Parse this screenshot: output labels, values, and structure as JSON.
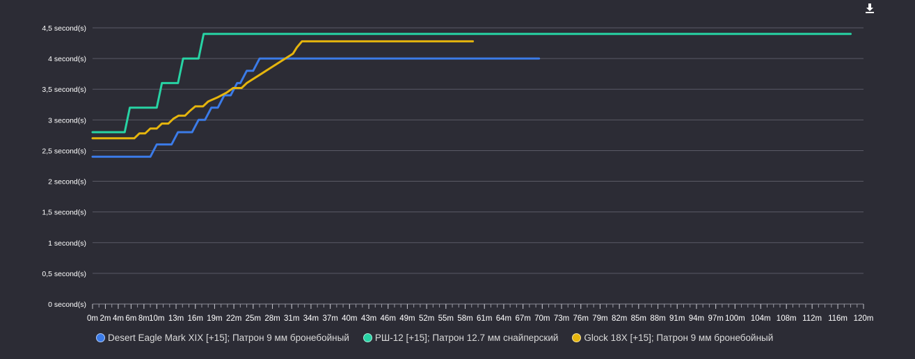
{
  "download_icon": "download-icon",
  "chart_data": {
    "type": "line",
    "title": "",
    "xlabel": "",
    "ylabel": "",
    "x_unit": "m",
    "xlim": [
      0,
      120
    ],
    "ylim": [
      0,
      4.5
    ],
    "grid": true,
    "legend_position": "bottom",
    "y_ticks": [
      {
        "value": 0,
        "label": "0 second(s)"
      },
      {
        "value": 0.5,
        "label": "0,5 second(s)"
      },
      {
        "value": 1,
        "label": "1 second(s)"
      },
      {
        "value": 1.5,
        "label": "1,5 second(s)"
      },
      {
        "value": 2,
        "label": "2 second(s)"
      },
      {
        "value": 2.5,
        "label": "2,5 second(s)"
      },
      {
        "value": 3,
        "label": "3 second(s)"
      },
      {
        "value": 3.5,
        "label": "3,5 second(s)"
      },
      {
        "value": 4,
        "label": "4 second(s)"
      },
      {
        "value": 4.5,
        "label": "4,5 second(s)"
      }
    ],
    "x_ticks": [
      {
        "value": 0,
        "label": "0m"
      },
      {
        "value": 2,
        "label": "2m"
      },
      {
        "value": 4,
        "label": "4m"
      },
      {
        "value": 6,
        "label": "6m"
      },
      {
        "value": 8,
        "label": "8m"
      },
      {
        "value": 10,
        "label": "10m"
      },
      {
        "value": 13,
        "label": "13m"
      },
      {
        "value": 16,
        "label": "16m"
      },
      {
        "value": 19,
        "label": "19m"
      },
      {
        "value": 22,
        "label": "22m"
      },
      {
        "value": 25,
        "label": "25m"
      },
      {
        "value": 28,
        "label": "28m"
      },
      {
        "value": 31,
        "label": "31m"
      },
      {
        "value": 34,
        "label": "34m"
      },
      {
        "value": 37,
        "label": "37m"
      },
      {
        "value": 40,
        "label": "40m"
      },
      {
        "value": 43,
        "label": "43m"
      },
      {
        "value": 46,
        "label": "46m"
      },
      {
        "value": 49,
        "label": "49m"
      },
      {
        "value": 52,
        "label": "52m"
      },
      {
        "value": 55,
        "label": "55m"
      },
      {
        "value": 58,
        "label": "58m"
      },
      {
        "value": 61,
        "label": "61m"
      },
      {
        "value": 64,
        "label": "64m"
      },
      {
        "value": 67,
        "label": "67m"
      },
      {
        "value": 70,
        "label": "70m"
      },
      {
        "value": 73,
        "label": "73m"
      },
      {
        "value": 76,
        "label": "76m"
      },
      {
        "value": 79,
        "label": "79m"
      },
      {
        "value": 82,
        "label": "82m"
      },
      {
        "value": 85,
        "label": "85m"
      },
      {
        "value": 88,
        "label": "88m"
      },
      {
        "value": 91,
        "label": "91m"
      },
      {
        "value": 94,
        "label": "94m"
      },
      {
        "value": 97,
        "label": "97m"
      },
      {
        "value": 100,
        "label": "100m"
      },
      {
        "value": 104,
        "label": "104m"
      },
      {
        "value": 108,
        "label": "108m"
      },
      {
        "value": 112,
        "label": "112m"
      },
      {
        "value": 116,
        "label": "116m"
      },
      {
        "value": 120,
        "label": "120m"
      }
    ],
    "series": [
      {
        "name": "Desert Eagle Mark XIX [+15]; Патрон 9 мм бронебойный",
        "color": "#3b7be8",
        "points": [
          [
            0,
            2.4
          ],
          [
            9,
            2.4
          ],
          [
            10,
            2.6
          ],
          [
            12.3,
            2.6
          ],
          [
            13.3,
            2.8
          ],
          [
            15.5,
            2.8
          ],
          [
            16.5,
            3.0
          ],
          [
            17.5,
            3.0
          ],
          [
            18.5,
            3.2
          ],
          [
            19.5,
            3.2
          ],
          [
            20.5,
            3.4
          ],
          [
            21.5,
            3.4
          ],
          [
            22.5,
            3.6
          ],
          [
            23,
            3.6
          ],
          [
            24,
            3.8
          ],
          [
            25,
            3.8
          ],
          [
            26,
            4.0
          ],
          [
            69.5,
            4.0
          ]
        ]
      },
      {
        "name": "РШ-12 [+15]; Патрон 12.7 мм снайперский",
        "color": "#27d3a4",
        "points": [
          [
            0,
            2.8
          ],
          [
            5,
            2.8
          ],
          [
            5.8,
            3.2
          ],
          [
            10,
            3.2
          ],
          [
            10.8,
            3.6
          ],
          [
            13.3,
            3.6
          ],
          [
            14.1,
            4.0
          ],
          [
            16.5,
            4.0
          ],
          [
            17.3,
            4.4
          ],
          [
            118,
            4.4
          ]
        ]
      },
      {
        "name": "Glock 18X [+15]; Патрон 9 мм бронебойный",
        "color": "#e5b50d",
        "points": [
          [
            0,
            2.7
          ],
          [
            6.5,
            2.7
          ],
          [
            7.3,
            2.78
          ],
          [
            8.2,
            2.78
          ],
          [
            9,
            2.86
          ],
          [
            10,
            2.86
          ],
          [
            10.8,
            2.94
          ],
          [
            11.8,
            2.94
          ],
          [
            12.6,
            3.02
          ],
          [
            13.4,
            3.07
          ],
          [
            14.4,
            3.07
          ],
          [
            15.2,
            3.15
          ],
          [
            16.0,
            3.22
          ],
          [
            17.2,
            3.22
          ],
          [
            18.0,
            3.3
          ],
          [
            19.5,
            3.37
          ],
          [
            20.8,
            3.44
          ],
          [
            21.9,
            3.52
          ],
          [
            23.2,
            3.52
          ],
          [
            24.0,
            3.6
          ],
          [
            25.2,
            3.68
          ],
          [
            26.4,
            3.76
          ],
          [
            27.6,
            3.84
          ],
          [
            28.8,
            3.92
          ],
          [
            30.0,
            4.0
          ],
          [
            31.2,
            4.08
          ],
          [
            31.8,
            4.18
          ],
          [
            32.6,
            4.28
          ],
          [
            59.2,
            4.28
          ]
        ]
      }
    ]
  }
}
